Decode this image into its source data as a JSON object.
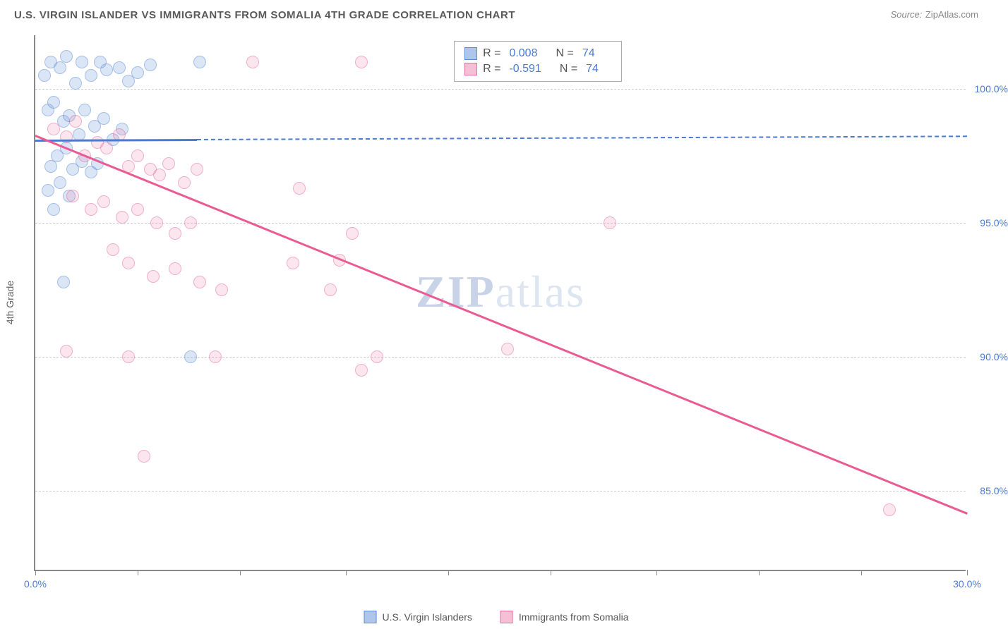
{
  "title": "U.S. VIRGIN ISLANDER VS IMMIGRANTS FROM SOMALIA 4TH GRADE CORRELATION CHART",
  "source_label": "Source:",
  "source_name": "ZipAtlas.com",
  "ylabel": "4th Grade",
  "watermark_a": "ZIP",
  "watermark_b": "atlas",
  "chart": {
    "type": "scatter",
    "xlim": [
      0,
      30
    ],
    "ylim": [
      82,
      102
    ],
    "xticks": [
      0,
      3.3,
      6.6,
      10,
      13.3,
      16.6,
      20,
      23.3,
      26.6,
      30
    ],
    "xtick_labels": {
      "0": "0.0%",
      "30": "30.0%"
    },
    "yticks": [
      85,
      90,
      95,
      100
    ],
    "ytick_labels": [
      "85.0%",
      "90.0%",
      "95.0%",
      "100.0%"
    ],
    "grid_color": "#cccccc",
    "axis_color": "#888888",
    "background_color": "#ffffff",
    "series": [
      {
        "name": "U.S. Virgin Islanders",
        "color_fill": "rgba(120,160,220,0.5)",
        "color_stroke": "#5b8bd4",
        "R": "0.008",
        "N": "74",
        "trend": {
          "y_at_x0": 98.1,
          "y_at_x30": 98.25,
          "solid_until_x": 5.2
        },
        "points": [
          [
            0.3,
            100.5
          ],
          [
            0.5,
            101
          ],
          [
            0.8,
            100.8
          ],
          [
            1.0,
            101.2
          ],
          [
            1.3,
            100.2
          ],
          [
            1.5,
            101
          ],
          [
            1.8,
            100.5
          ],
          [
            2.1,
            101
          ],
          [
            2.3,
            100.7
          ],
          [
            2.7,
            100.8
          ],
          [
            3.0,
            100.3
          ],
          [
            3.3,
            100.6
          ],
          [
            3.7,
            100.9
          ],
          [
            5.3,
            101
          ],
          [
            0.4,
            99.2
          ],
          [
            0.6,
            99.5
          ],
          [
            0.9,
            98.8
          ],
          [
            1.1,
            99.0
          ],
          [
            1.4,
            98.3
          ],
          [
            1.6,
            99.2
          ],
          [
            1.9,
            98.6
          ],
          [
            2.2,
            98.9
          ],
          [
            2.5,
            98.1
          ],
          [
            2.8,
            98.5
          ],
          [
            0.5,
            97.1
          ],
          [
            0.7,
            97.5
          ],
          [
            1.0,
            97.8
          ],
          [
            1.2,
            97.0
          ],
          [
            1.5,
            97.3
          ],
          [
            1.8,
            96.9
          ],
          [
            2.0,
            97.2
          ],
          [
            0.4,
            96.2
          ],
          [
            0.8,
            96.5
          ],
          [
            1.1,
            96.0
          ],
          [
            0.6,
            95.5
          ],
          [
            5.0,
            90.0
          ],
          [
            0.9,
            92.8
          ]
        ]
      },
      {
        "name": "Immigrants from Somalia",
        "color_fill": "rgba(235,130,170,0.35)",
        "color_stroke": "#e76ca0",
        "R": "-0.591",
        "N": "74",
        "trend": {
          "y_at_x0": 98.3,
          "y_at_x30": 84.2,
          "solid_until_x": 30
        },
        "points": [
          [
            0.6,
            98.5
          ],
          [
            1.0,
            98.2
          ],
          [
            1.3,
            98.8
          ],
          [
            1.6,
            97.5
          ],
          [
            2.0,
            98.0
          ],
          [
            2.3,
            97.8
          ],
          [
            2.7,
            98.3
          ],
          [
            3.0,
            97.1
          ],
          [
            3.3,
            97.5
          ],
          [
            3.7,
            97.0
          ],
          [
            4.0,
            96.8
          ],
          [
            4.3,
            97.2
          ],
          [
            4.8,
            96.5
          ],
          [
            5.2,
            97.0
          ],
          [
            7.0,
            101
          ],
          [
            10.5,
            101
          ],
          [
            1.2,
            96.0
          ],
          [
            1.8,
            95.5
          ],
          [
            2.2,
            95.8
          ],
          [
            2.8,
            95.2
          ],
          [
            3.3,
            95.5
          ],
          [
            3.9,
            95.0
          ],
          [
            4.5,
            94.6
          ],
          [
            5.0,
            95.0
          ],
          [
            2.5,
            94.0
          ],
          [
            3.0,
            93.5
          ],
          [
            3.8,
            93.0
          ],
          [
            4.5,
            93.3
          ],
          [
            5.3,
            92.8
          ],
          [
            6.0,
            92.5
          ],
          [
            8.5,
            96.3
          ],
          [
            10.2,
            94.6
          ],
          [
            9.8,
            93.6
          ],
          [
            9.5,
            92.5
          ],
          [
            8.3,
            93.5
          ],
          [
            11.0,
            90.0
          ],
          [
            10.5,
            89.5
          ],
          [
            18.5,
            95.0
          ],
          [
            1.0,
            90.2
          ],
          [
            3.0,
            90.0
          ],
          [
            5.8,
            90.0
          ],
          [
            3.5,
            86.3
          ],
          [
            27.5,
            84.3
          ],
          [
            15.2,
            90.3
          ]
        ]
      }
    ]
  },
  "legend_labels": {
    "R": "R =",
    "N": "N =",
    "series1": "U.S. Virgin Islanders",
    "series2": "Immigrants from Somalia"
  }
}
